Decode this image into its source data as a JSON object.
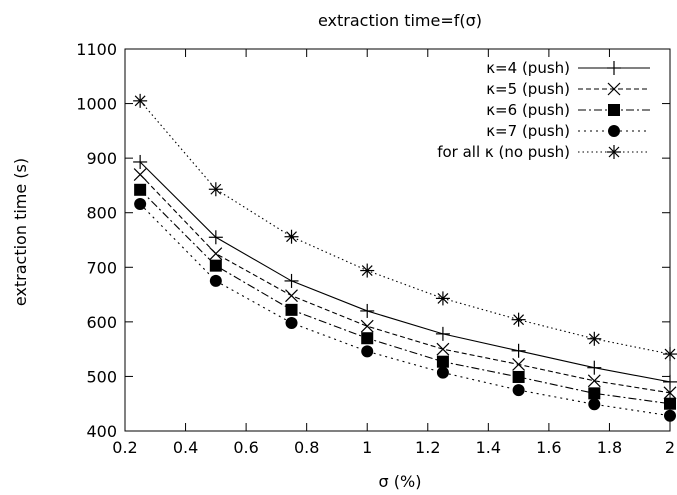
{
  "chart_data": {
    "type": "line",
    "title": "extraction time=f(σ)",
    "xlabel": "σ (%)",
    "ylabel": "extraction time (s)",
    "xlim": [
      0.2,
      2
    ],
    "ylim": [
      400,
      1100
    ],
    "xticks": [
      0.2,
      0.4,
      0.6,
      0.8,
      1,
      1.2,
      1.4,
      1.6,
      1.8,
      2
    ],
    "xtick_labels": [
      "0.2",
      "0.4",
      "0.6",
      "0.8",
      "1",
      "1.2",
      "1.4",
      "1.6",
      "1.8",
      "2"
    ],
    "yticks": [
      400,
      500,
      600,
      700,
      800,
      900,
      1000,
      1100
    ],
    "ytick_labels": [
      "400",
      "500",
      "600",
      "700",
      "800",
      "900",
      "1000",
      "1100"
    ],
    "grid": false,
    "legend_position": "top-right",
    "x": [
      0.25,
      0.5,
      0.75,
      1.0,
      1.25,
      1.5,
      1.75,
      2.0
    ],
    "series": [
      {
        "name": "κ=4 (push)",
        "marker": "plus",
        "dash": "solid",
        "values": [
          893,
          755,
          675,
          620,
          578,
          547,
          516,
          490
        ]
      },
      {
        "name": "κ=5 (push)",
        "marker": "cross",
        "dash": "dashed",
        "values": [
          870,
          725,
          648,
          592,
          550,
          522,
          492,
          470
        ]
      },
      {
        "name": "κ=6 (push)",
        "marker": "square",
        "dash": "dashdot",
        "values": [
          842,
          703,
          622,
          570,
          527,
          499,
          469,
          450
        ]
      },
      {
        "name": "κ=7 (push)",
        "marker": "circle",
        "dash": "dotted-wide",
        "values": [
          816,
          675,
          598,
          546,
          507,
          475,
          449,
          428
        ]
      },
      {
        "name": "for all κ (no push)",
        "marker": "star",
        "dash": "dotted",
        "values": [
          1005,
          843,
          756,
          694,
          643,
          604,
          569,
          541
        ]
      }
    ]
  }
}
